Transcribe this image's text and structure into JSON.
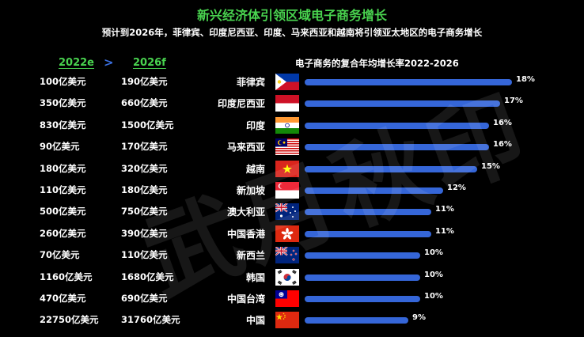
{
  "title": "新兴经济体引领区域电子商务增长",
  "subtitle": "预计到2026年，菲律宾、印度尼西亚、印度、马来西亚和越南将引领亚太地区的电子商务增长",
  "col_2022": "2022e",
  "col_arrow": ">",
  "col_2026": "2026f",
  "chart_title": "电子商务的复合年均增长率2022-2026",
  "watermark_text": "武月秋印",
  "colors": {
    "title": "#49d34f",
    "bar": "#3566d8",
    "background": "#000000"
  },
  "chart_data": {
    "type": "bar",
    "orientation": "horizontal",
    "title": "电子商务的复合年均增长率2022-2026",
    "categories": [
      "菲律宾",
      "印度尼西亚",
      "印度",
      "马来西亚",
      "越南",
      "新加坡",
      "澳大利亚",
      "中国香港",
      "新西兰",
      "韩国",
      "中国台湾",
      "中国"
    ],
    "values": [
      18,
      17,
      16,
      16,
      15,
      12,
      11,
      11,
      10,
      10,
      10,
      9
    ],
    "labels": [
      "18%",
      "17%",
      "16%",
      "16%",
      "15%",
      "12%",
      "11%",
      "11%",
      "10%",
      "10%",
      "10%",
      "9%"
    ],
    "xlim": [
      0,
      18
    ],
    "grid": false
  },
  "rows": [
    {
      "country": "菲律宾",
      "flag": "philippines",
      "v2022": "100亿美元",
      "v2026": "190亿美元"
    },
    {
      "country": "印度尼西亚",
      "flag": "indonesia",
      "v2022": "350亿美元",
      "v2026": "660亿美元"
    },
    {
      "country": "印度",
      "flag": "india",
      "v2022": "830亿美元",
      "v2026": "1500亿美元"
    },
    {
      "country": "马来西亚",
      "flag": "malaysia",
      "v2022": "90亿美元",
      "v2026": "170亿美元"
    },
    {
      "country": "越南",
      "flag": "vietnam",
      "v2022": "180亿美元",
      "v2026": "320亿美元"
    },
    {
      "country": "新加坡",
      "flag": "singapore",
      "v2022": "110亿美元",
      "v2026": "180亿美元"
    },
    {
      "country": "澳大利亚",
      "flag": "australia",
      "v2022": "500亿美元",
      "v2026": "750亿美元"
    },
    {
      "country": "中国香港",
      "flag": "hongkong",
      "v2022": "260亿美元",
      "v2026": "390亿美元"
    },
    {
      "country": "新西兰",
      "flag": "newzealand",
      "v2022": "70亿美元",
      "v2026": "110亿美元"
    },
    {
      "country": "韩国",
      "flag": "korea",
      "v2022": "1160亿美元",
      "v2026": "1680亿美元"
    },
    {
      "country": "中国台湾",
      "flag": "taiwan",
      "v2022": "470亿美元",
      "v2026": "690亿美元"
    },
    {
      "country": "中国",
      "flag": "china",
      "v2022": "22750亿美元",
      "v2026": "31760亿美元"
    }
  ]
}
